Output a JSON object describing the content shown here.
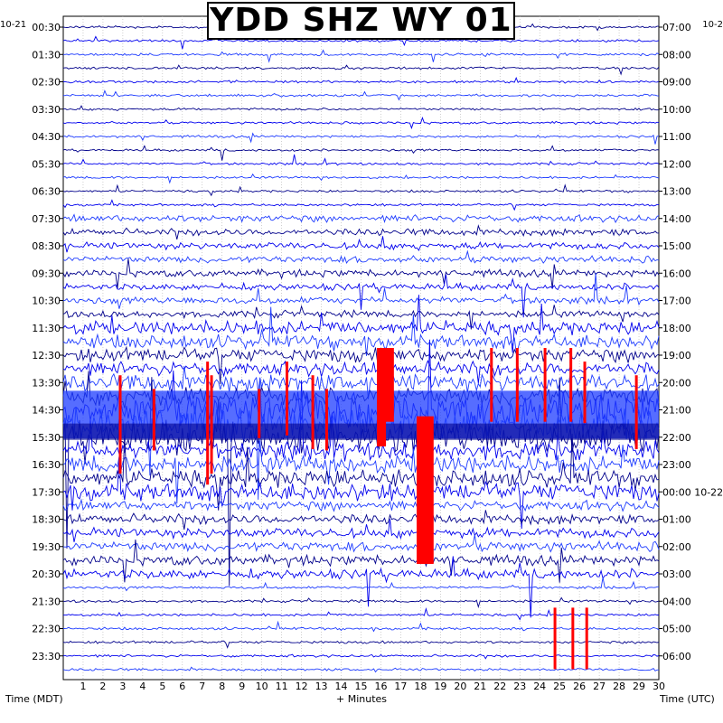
{
  "chart_data": {
    "type": "helicorder",
    "title": "YDD SHZ WY 01",
    "left_axis_label": "Time (MDT)",
    "right_axis_label": "Time (UTC)",
    "xlabel": "+ Minutes",
    "left_date_fragment": "10-21",
    "right_date_fragment": "10-2",
    "xlim": [
      0,
      30
    ],
    "x_ticks": [
      "1",
      "2",
      "3",
      "4",
      "5",
      "6",
      "7",
      "8",
      "9",
      "10",
      "11",
      "12",
      "13",
      "14",
      "15",
      "16",
      "17",
      "18",
      "19",
      "20",
      "21",
      "22",
      "23",
      "24",
      "25",
      "26",
      "27",
      "28",
      "29",
      "30"
    ],
    "left_ticks": [
      "00:30",
      "01:30",
      "02:30",
      "03:30",
      "04:30",
      "05:30",
      "06:30",
      "07:30",
      "08:30",
      "09:30",
      "10:30",
      "11:30",
      "12:30",
      "13:30",
      "14:30",
      "15:30",
      "16:30",
      "17:30",
      "18:30",
      "19:30",
      "20:30",
      "21:30",
      "22:30",
      "23:30"
    ],
    "right_ticks": [
      "07:00",
      "08:00",
      "09:00",
      "10:00",
      "11:00",
      "12:00",
      "13:00",
      "14:00",
      "15:00",
      "16:00",
      "17:00",
      "18:00",
      "19:00",
      "20:00",
      "21:00",
      "22:00",
      "23:00",
      "00:00 10-22",
      "01:00",
      "02:00",
      "03:00",
      "04:00",
      "05:00",
      "06:00"
    ],
    "trace_count": 48,
    "trace_colors": [
      "#00008b",
      "#0000ee",
      "#1e3cff"
    ],
    "clip_color": "#ff0000",
    "grid": true
  }
}
